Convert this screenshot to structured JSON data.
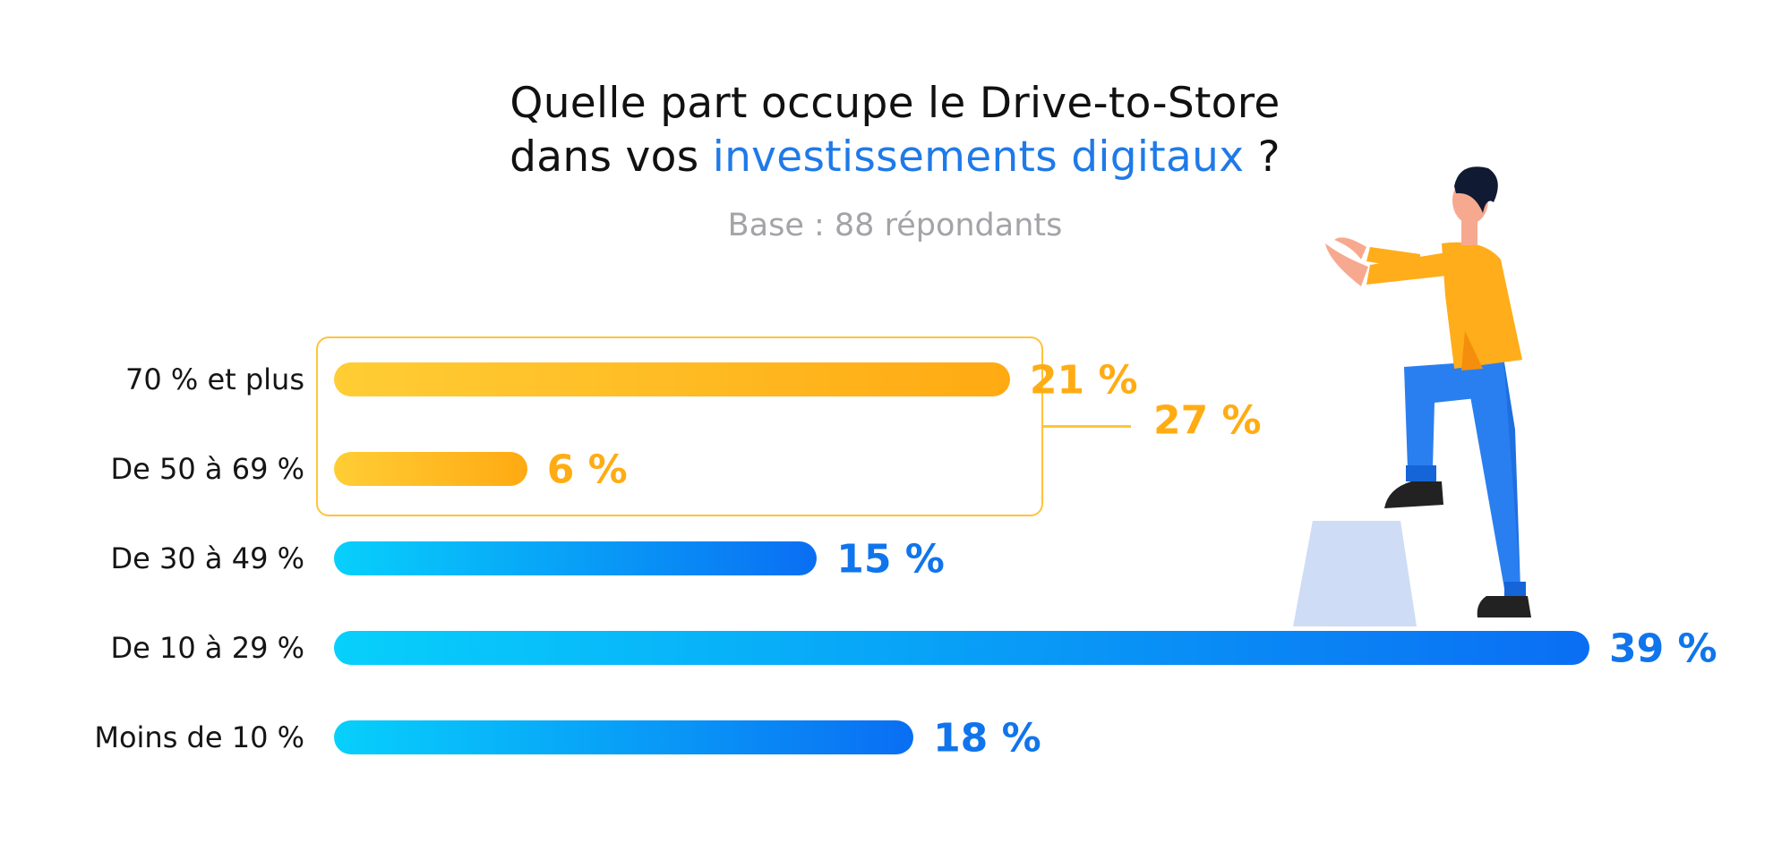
{
  "title_line1": "Quelle part occupe le Drive-to-Store",
  "title_line2_prefix": "dans vos ",
  "title_line2_highlight": "investissements digitaux",
  "title_line2_suffix": " ?",
  "subtitle": "Base : 88 répondants",
  "group": {
    "label": "27 %",
    "value": 27,
    "members": [
      "70 % et plus",
      "De 50 à 69 %"
    ]
  },
  "colors": {
    "orange_start": "#ffcd35",
    "orange_end": "#ffaa12",
    "blue_start": "#07d0fb",
    "blue_end": "#0a6ef3",
    "title_highlight": "#1f7ae8",
    "subtitle": "#a3a3a8"
  },
  "chart_data": {
    "type": "bar",
    "orientation": "horizontal",
    "title": "Quelle part occupe le Drive-to-Store dans vos investissements digitaux ?",
    "subtitle": "Base : 88 répondants",
    "categories": [
      "70 % et plus",
      "De 50 à 69 %",
      "De 30 à 49 %",
      "De 10 à 29 %",
      "Moins de 10 %"
    ],
    "values": [
      21,
      6,
      15,
      39,
      18
    ],
    "labels": [
      "21 %",
      "6 %",
      "15 %",
      "39 %",
      "18 %"
    ],
    "bar_colors": [
      "orange",
      "orange",
      "blue",
      "blue",
      "blue"
    ],
    "xlim": [
      0,
      39
    ]
  },
  "illustration": {
    "icon": "person-stepping-on-block-icon"
  }
}
